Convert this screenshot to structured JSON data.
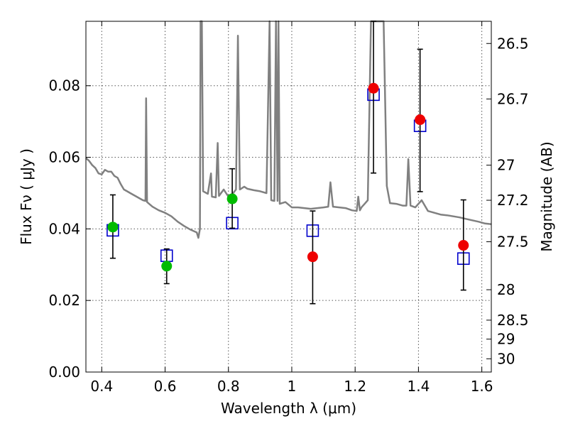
{
  "chart_data": {
    "type": "scatter",
    "title": "",
    "xlabel": "Wavelength  λ (μm)",
    "ylabel": "Flux  Fν  ( μJy )",
    "ylabel_right": "Magnitude (AB)",
    "xlim": [
      0.35,
      1.63
    ],
    "ylim": [
      0.0,
      0.098
    ],
    "grid": true,
    "x_ticks": [
      0.4,
      0.6,
      0.8,
      1.0,
      1.2,
      1.4,
      1.6
    ],
    "x_tick_labels": [
      "0.4",
      "0.6",
      "0.8",
      "1",
      "1.2",
      "1.4",
      "1.6"
    ],
    "y_ticks": [
      0.0,
      0.02,
      0.04,
      0.06,
      0.08
    ],
    "y_tick_labels": [
      "0.00",
      "0.02",
      "0.04",
      "0.06",
      "0.08"
    ],
    "right_ticks": [
      {
        "flux": 0.0918,
        "label": "26.5"
      },
      {
        "flux": 0.0763,
        "label": "26.7"
      },
      {
        "flux": 0.0578,
        "label": "27"
      },
      {
        "flux": 0.048,
        "label": "27.2"
      },
      {
        "flux": 0.0364,
        "label": "27.5"
      },
      {
        "flux": 0.023,
        "label": "28"
      },
      {
        "flux": 0.0145,
        "label": "28.5"
      },
      {
        "flux": 0.0092,
        "label": "29"
      },
      {
        "flux": 0.0037,
        "label": "30"
      }
    ],
    "colors": {
      "spectrum": "#808080",
      "green_points": "#00bb00",
      "red_points": "#ee0000",
      "model_squares": "#0000cc",
      "error_bars": "#000000",
      "grid": "#555555"
    },
    "series": [
      {
        "marker": "open-square",
        "color": "#0000cc",
        "points": [
          {
            "x": 0.435,
            "y": 0.0396
          },
          {
            "x": 0.605,
            "y": 0.0325
          },
          {
            "x": 0.812,
            "y": 0.0416
          },
          {
            "x": 1.066,
            "y": 0.0395
          },
          {
            "x": 1.258,
            "y": 0.0775
          },
          {
            "x": 1.405,
            "y": 0.0688
          },
          {
            "x": 1.542,
            "y": 0.0317
          }
        ]
      },
      {
        "marker": "filled-circle",
        "color": "#00bb00",
        "points": [
          {
            "x": 0.435,
            "y": 0.0405,
            "err_low": 0.0318,
            "err_high": 0.0495
          },
          {
            "x": 0.605,
            "y": 0.0296,
            "err_low": 0.0247,
            "err_high": 0.0344
          },
          {
            "x": 0.812,
            "y": 0.0484,
            "err_low": 0.0402,
            "err_high": 0.0568
          }
        ]
      },
      {
        "marker": "filled-circle",
        "color": "#ee0000",
        "points": [
          {
            "x": 1.066,
            "y": 0.0322,
            "err_low": 0.0191,
            "err_high": 0.045
          },
          {
            "x": 1.258,
            "y": 0.0793,
            "err_low": 0.0556,
            "err_high": 0.098
          },
          {
            "x": 1.405,
            "y": 0.0705,
            "err_low": 0.0504,
            "err_high": 0.0902
          },
          {
            "x": 1.542,
            "y": 0.0354,
            "err_low": 0.0229,
            "err_high": 0.0481
          }
        ]
      },
      {
        "marker": "line",
        "color": "#808080",
        "points": [
          {
            "x": 0.35,
            "y": 0.0598
          },
          {
            "x": 0.36,
            "y": 0.059
          },
          {
            "x": 0.37,
            "y": 0.0578
          },
          {
            "x": 0.38,
            "y": 0.057
          },
          {
            "x": 0.39,
            "y": 0.0555
          },
          {
            "x": 0.4,
            "y": 0.0552
          },
          {
            "x": 0.41,
            "y": 0.0565
          },
          {
            "x": 0.42,
            "y": 0.056
          },
          {
            "x": 0.43,
            "y": 0.056
          },
          {
            "x": 0.44,
            "y": 0.0548
          },
          {
            "x": 0.45,
            "y": 0.0543
          },
          {
            "x": 0.46,
            "y": 0.0525
          },
          {
            "x": 0.47,
            "y": 0.051
          },
          {
            "x": 0.48,
            "y": 0.0505
          },
          {
            "x": 0.49,
            "y": 0.05
          },
          {
            "x": 0.5,
            "y": 0.0495
          },
          {
            "x": 0.51,
            "y": 0.049
          },
          {
            "x": 0.52,
            "y": 0.0485
          },
          {
            "x": 0.53,
            "y": 0.048
          },
          {
            "x": 0.538,
            "y": 0.0478
          },
          {
            "x": 0.54,
            "y": 0.0765
          },
          {
            "x": 0.543,
            "y": 0.0475
          },
          {
            "x": 0.56,
            "y": 0.0462
          },
          {
            "x": 0.58,
            "y": 0.0452
          },
          {
            "x": 0.6,
            "y": 0.0445
          },
          {
            "x": 0.62,
            "y": 0.0435
          },
          {
            "x": 0.64,
            "y": 0.042
          },
          {
            "x": 0.66,
            "y": 0.0408
          },
          {
            "x": 0.68,
            "y": 0.0398
          },
          {
            "x": 0.7,
            "y": 0.039
          },
          {
            "x": 0.705,
            "y": 0.0375
          },
          {
            "x": 0.71,
            "y": 0.04
          },
          {
            "x": 0.712,
            "y": 0.098
          },
          {
            "x": 0.716,
            "y": 0.098
          },
          {
            "x": 0.72,
            "y": 0.0505
          },
          {
            "x": 0.735,
            "y": 0.0498
          },
          {
            "x": 0.745,
            "y": 0.0555
          },
          {
            "x": 0.748,
            "y": 0.049
          },
          {
            "x": 0.76,
            "y": 0.0488
          },
          {
            "x": 0.766,
            "y": 0.064
          },
          {
            "x": 0.77,
            "y": 0.0492
          },
          {
            "x": 0.785,
            "y": 0.051
          },
          {
            "x": 0.8,
            "y": 0.049
          },
          {
            "x": 0.815,
            "y": 0.05
          },
          {
            "x": 0.824,
            "y": 0.051
          },
          {
            "x": 0.83,
            "y": 0.094
          },
          {
            "x": 0.836,
            "y": 0.051
          },
          {
            "x": 0.85,
            "y": 0.0518
          },
          {
            "x": 0.86,
            "y": 0.0512
          },
          {
            "x": 0.88,
            "y": 0.0508
          },
          {
            "x": 0.9,
            "y": 0.0505
          },
          {
            "x": 0.92,
            "y": 0.05
          },
          {
            "x": 0.93,
            "y": 0.098
          },
          {
            "x": 0.935,
            "y": 0.048
          },
          {
            "x": 0.945,
            "y": 0.0478
          },
          {
            "x": 0.95,
            "y": 0.098
          },
          {
            "x": 0.955,
            "y": 0.0478
          },
          {
            "x": 0.958,
            "y": 0.098
          },
          {
            "x": 0.962,
            "y": 0.047
          },
          {
            "x": 0.98,
            "y": 0.0475
          },
          {
            "x": 1.0,
            "y": 0.046
          },
          {
            "x": 1.02,
            "y": 0.046
          },
          {
            "x": 1.04,
            "y": 0.0458
          },
          {
            "x": 1.06,
            "y": 0.0456
          },
          {
            "x": 1.08,
            "y": 0.0458
          },
          {
            "x": 1.1,
            "y": 0.046
          },
          {
            "x": 1.115,
            "y": 0.0462
          },
          {
            "x": 1.122,
            "y": 0.053
          },
          {
            "x": 1.13,
            "y": 0.0462
          },
          {
            "x": 1.15,
            "y": 0.046
          },
          {
            "x": 1.17,
            "y": 0.0458
          },
          {
            "x": 1.19,
            "y": 0.0452
          },
          {
            "x": 1.205,
            "y": 0.045
          },
          {
            "x": 1.21,
            "y": 0.049
          },
          {
            "x": 1.215,
            "y": 0.0452
          },
          {
            "x": 1.22,
            "y": 0.046
          },
          {
            "x": 1.23,
            "y": 0.047
          },
          {
            "x": 1.24,
            "y": 0.048
          },
          {
            "x": 1.25,
            "y": 0.098
          },
          {
            "x": 1.27,
            "y": 0.098
          },
          {
            "x": 1.28,
            "y": 0.098
          },
          {
            "x": 1.29,
            "y": 0.098
          },
          {
            "x": 1.3,
            "y": 0.052
          },
          {
            "x": 1.31,
            "y": 0.0472
          },
          {
            "x": 1.33,
            "y": 0.047
          },
          {
            "x": 1.35,
            "y": 0.0465
          },
          {
            "x": 1.362,
            "y": 0.0465
          },
          {
            "x": 1.368,
            "y": 0.0595
          },
          {
            "x": 1.375,
            "y": 0.0465
          },
          {
            "x": 1.39,
            "y": 0.046
          },
          {
            "x": 1.41,
            "y": 0.048
          },
          {
            "x": 1.43,
            "y": 0.045
          },
          {
            "x": 1.45,
            "y": 0.0445
          },
          {
            "x": 1.47,
            "y": 0.044
          },
          {
            "x": 1.49,
            "y": 0.0438
          },
          {
            "x": 1.51,
            "y": 0.0435
          },
          {
            "x": 1.53,
            "y": 0.0432
          },
          {
            "x": 1.55,
            "y": 0.0428
          },
          {
            "x": 1.57,
            "y": 0.0424
          },
          {
            "x": 1.59,
            "y": 0.042
          },
          {
            "x": 1.61,
            "y": 0.0415
          },
          {
            "x": 1.63,
            "y": 0.0413
          }
        ]
      }
    ]
  }
}
